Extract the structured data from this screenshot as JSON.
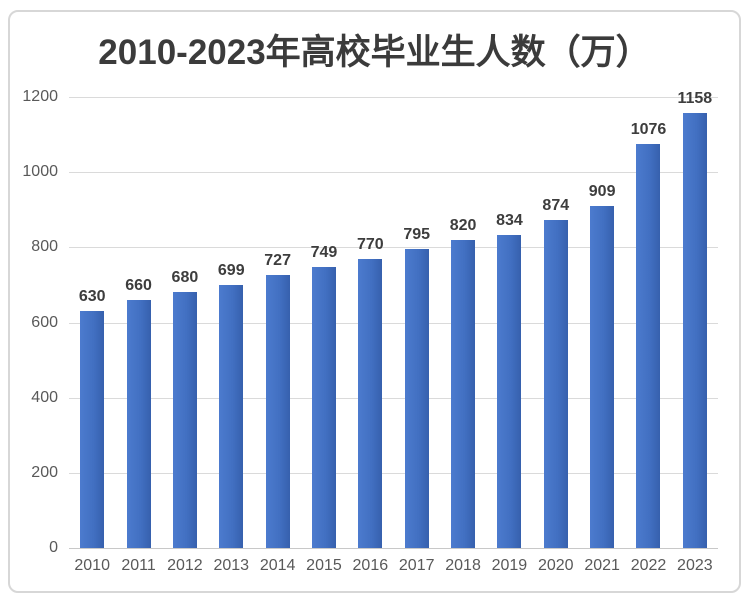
{
  "chart_data": {
    "type": "bar",
    "title": "2010-2023年高校毕业生人数（万）",
    "categories": [
      "2010",
      "2011",
      "2012",
      "2013",
      "2014",
      "2015",
      "2016",
      "2017",
      "2018",
      "2019",
      "2020",
      "2021",
      "2022",
      "2023"
    ],
    "values": [
      630,
      660,
      680,
      699,
      727,
      749,
      770,
      795,
      820,
      834,
      874,
      909,
      1076,
      1158
    ],
    "xlabel": "",
    "ylabel": "",
    "ylim": [
      0,
      1200
    ],
    "yticks": [
      0,
      200,
      400,
      600,
      800,
      1000,
      1200
    ],
    "grid": "horizontal",
    "legend": "none",
    "data_labels": true,
    "colors": {
      "bar": "#4472c4",
      "title_text": "#3b3b3b",
      "value_label_text": "#3d3d3d",
      "axis_tick_text": "#595959",
      "gridline": "#dadada",
      "axis_line": "#c8c8c8",
      "frame_border": "#d7d7d7",
      "background": "#ffffff"
    }
  }
}
